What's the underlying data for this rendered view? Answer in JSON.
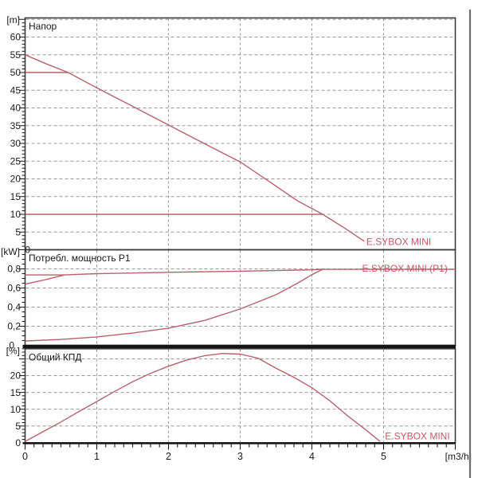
{
  "colors": {
    "background": "#ffffff",
    "curve": "#b4636c",
    "series_label": "#c25862",
    "grid": "#999999",
    "frame": "#3c3c3c",
    "heavy_line": "#141414",
    "text": "#1a1a1a",
    "right_border": "#6e6e6e"
  },
  "x_axis": {
    "xlim": [
      0,
      6
    ],
    "minor_step": 0.125,
    "unit": "[m3/h]",
    "ticks": [
      {
        "v": 0,
        "t": "0"
      },
      {
        "v": 1,
        "t": "1"
      },
      {
        "v": 2,
        "t": "2"
      },
      {
        "v": 3,
        "t": "3"
      },
      {
        "v": 4,
        "t": "4"
      },
      {
        "v": 5,
        "t": "5"
      }
    ]
  },
  "chart_data": [
    {
      "type": "line",
      "title": "Напор",
      "unit": "[m]",
      "ylim": [
        0,
        65.4
      ],
      "ygrid": [
        5,
        10,
        15,
        20,
        25,
        30,
        35,
        40,
        45,
        50,
        55,
        60,
        65
      ],
      "minor_step": 1,
      "major_step": 5,
      "yticks": [
        {
          "v": 60,
          "t": "60"
        },
        {
          "v": 55,
          "t": "55"
        },
        {
          "v": 50,
          "t": "50"
        },
        {
          "v": 45,
          "t": "45"
        },
        {
          "v": 40,
          "t": "40"
        },
        {
          "v": 35,
          "t": "35"
        },
        {
          "v": 30,
          "t": "30"
        },
        {
          "v": 25,
          "t": "25"
        },
        {
          "v": 20,
          "t": "20"
        },
        {
          "v": 15,
          "t": "15"
        },
        {
          "v": 10,
          "t": "10"
        },
        {
          "v": 5,
          "t": "5"
        },
        {
          "v": 0,
          "t": "0",
          "dx": 12
        }
      ],
      "series": [
        {
          "name": "head-curve",
          "points": [
            [
              0,
              55
            ],
            [
              0.3,
              52.4
            ],
            [
              0.6,
              50
            ],
            [
              1,
              45.7
            ],
            [
              1.4,
              41.5
            ],
            [
              1.8,
              37.3
            ],
            [
              2.2,
              33.1
            ],
            [
              2.6,
              28.9
            ],
            [
              3,
              24.8
            ],
            [
              3.4,
              19.3
            ],
            [
              3.8,
              13.8
            ],
            [
              4.15,
              10
            ],
            [
              4.45,
              6.2
            ],
            [
              4.73,
              2.4
            ]
          ]
        },
        {
          "name": "setpoint-50m",
          "points": [
            [
              0,
              50
            ],
            [
              0.6,
              50
            ]
          ]
        },
        {
          "name": "setpoint-10m",
          "points": [
            [
              0,
              10
            ],
            [
              4.15,
              10
            ]
          ]
        }
      ],
      "annotations": [
        {
          "text": "E.SYBOX MINI",
          "x": 4.76,
          "y": 1.4
        }
      ]
    },
    {
      "type": "line",
      "title": "Потребл. мощность P1",
      "unit": "[kW]",
      "ylim": [
        0,
        1.0
      ],
      "ygrid": [
        0.2,
        0.4,
        0.6,
        0.8
      ],
      "minor_step": 0.05,
      "major_step": 0.2,
      "yticks": [
        {
          "v": 0.8,
          "t": "0,8"
        },
        {
          "v": 0.6,
          "t": "0,6"
        },
        {
          "v": 0.4,
          "t": "0,4"
        },
        {
          "v": 0.2,
          "t": "0,2"
        },
        {
          "v": 0,
          "t": "0",
          "dx": -8
        }
      ],
      "series": [
        {
          "name": "p1-max-curve",
          "points": [
            [
              0,
              0.64
            ],
            [
              0.3,
              0.69
            ],
            [
              0.55,
              0.737
            ],
            [
              1,
              0.75
            ],
            [
              2,
              0.764
            ],
            [
              3,
              0.776
            ],
            [
              4,
              0.79
            ],
            [
              4.15,
              0.795
            ],
            [
              6,
              0.795
            ]
          ]
        },
        {
          "name": "setpoint-power",
          "points": [
            [
              0,
              0.737
            ],
            [
              0.55,
              0.737
            ]
          ]
        },
        {
          "name": "p1-operating-curve",
          "points": [
            [
              0,
              0.046
            ],
            [
              0.5,
              0.062
            ],
            [
              1,
              0.088
            ],
            [
              1.5,
              0.128
            ],
            [
              2,
              0.18
            ],
            [
              2.5,
              0.26
            ],
            [
              3,
              0.38
            ],
            [
              3.5,
              0.53
            ],
            [
              3.8,
              0.65
            ],
            [
              4,
              0.74
            ],
            [
              4.15,
              0.795
            ]
          ]
        }
      ],
      "annotations": [
        {
          "text": "E.SYBOX MINI (P1)",
          "x": 4.7,
          "y": 0.77
        }
      ]
    },
    {
      "type": "line",
      "title": "Общий КПД",
      "unit": "[%]",
      "ylim": [
        0,
        28
      ],
      "ygrid": [
        5,
        10,
        15,
        20,
        25
      ],
      "minor_step": 1,
      "major_step": 5,
      "yticks": [
        {
          "v": 20,
          "t": "20"
        },
        {
          "v": 15,
          "t": "15"
        },
        {
          "v": 10,
          "t": "10"
        },
        {
          "v": 5,
          "t": "5"
        },
        {
          "v": 0,
          "t": "0"
        }
      ],
      "series": [
        {
          "name": "efficiency-curve",
          "points": [
            [
              0,
              0.4
            ],
            [
              0.25,
              3.3
            ],
            [
              0.5,
              6.2
            ],
            [
              0.75,
              9.3
            ],
            [
              1,
              12.3
            ],
            [
              1.25,
              15.3
            ],
            [
              1.5,
              18.2
            ],
            [
              1.75,
              20.7
            ],
            [
              2,
              22.8
            ],
            [
              2.25,
              24.6
            ],
            [
              2.5,
              25.9
            ],
            [
              2.75,
              26.6
            ],
            [
              3,
              26.4
            ],
            [
              3.25,
              25.2
            ],
            [
              3.5,
              22.2
            ],
            [
              3.75,
              19.5
            ],
            [
              4,
              16.4
            ],
            [
              4.25,
              12.5
            ],
            [
              4.5,
              8
            ],
            [
              4.75,
              3.9
            ],
            [
              4.95,
              0.4
            ]
          ]
        }
      ],
      "annotations": [
        {
          "text": "E.SYBOX MINI",
          "x": 5.02,
          "y": 1.0
        }
      ]
    }
  ]
}
